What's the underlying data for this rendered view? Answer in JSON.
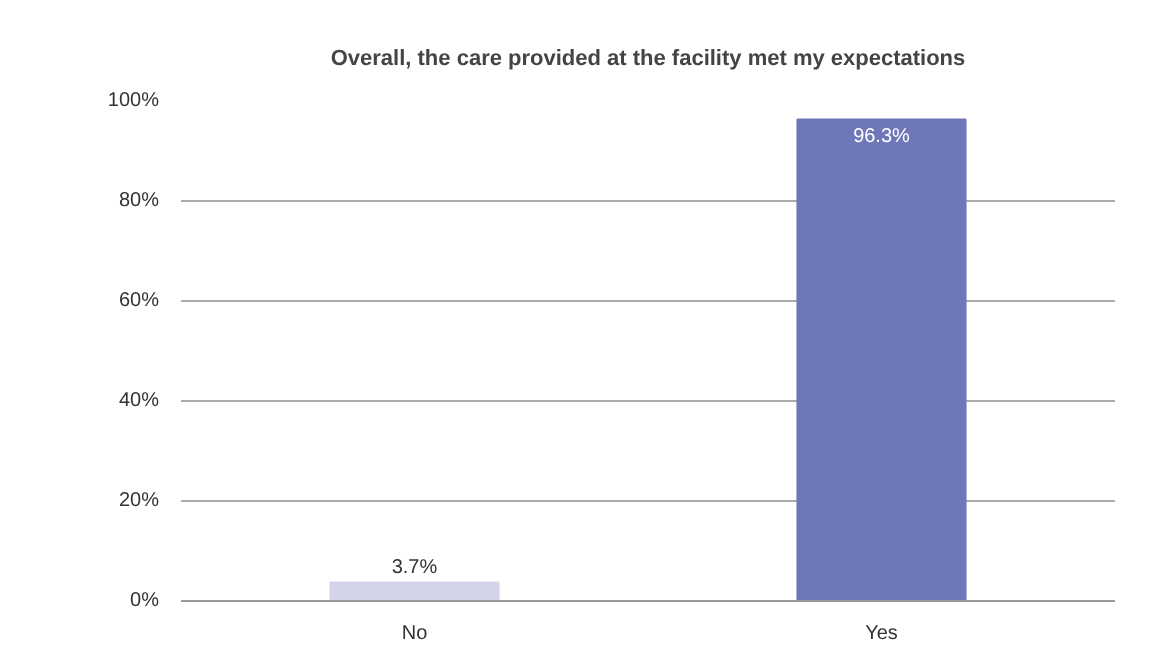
{
  "chart_data": {
    "type": "bar",
    "title": "Overall, the care provided at the facility met my expectations",
    "categories": [
      "No",
      "Yes"
    ],
    "values": [
      3.7,
      96.3
    ],
    "colors": [
      "#d3d3ea",
      "#6e77b8"
    ],
    "value_labels": [
      "3.7%",
      "96.3%"
    ],
    "ylim": [
      0,
      100
    ],
    "yticks": [
      {
        "value": 0,
        "label": "0%"
      },
      {
        "value": 20,
        "label": "20%"
      },
      {
        "value": 40,
        "label": "40%"
      },
      {
        "value": 60,
        "label": "60%"
      },
      {
        "value": 80,
        "label": "80%"
      },
      {
        "value": 100,
        "label": "100%"
      }
    ],
    "grid": "y"
  }
}
